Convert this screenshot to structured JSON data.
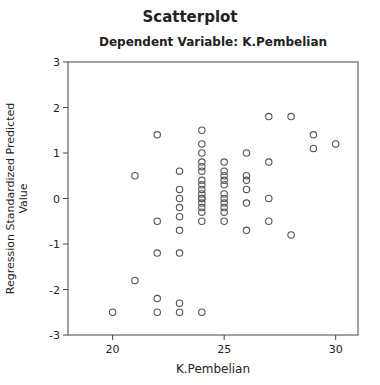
{
  "chart_data": {
    "type": "scatter",
    "title": "Scatterplot",
    "subtitle": "Dependent Variable: K.Pembelian",
    "xlabel": "K.Pembelian",
    "ylabel": "Regression Standardized Predicted\nValue",
    "xlim": [
      18,
      31
    ],
    "ylim": [
      -3,
      3
    ],
    "xticks": [
      20,
      25,
      30
    ],
    "yticks": [
      -3,
      -2,
      -1,
      0,
      1,
      2,
      3
    ],
    "grid": false,
    "color": "#555555",
    "marker": "open-circle",
    "x": [
      20,
      21,
      21,
      22,
      22,
      22,
      22,
      22,
      23,
      23,
      23,
      23,
      23,
      23,
      23,
      23,
      23,
      24,
      24,
      24,
      24,
      24,
      24,
      24,
      24,
      24,
      24,
      24,
      24,
      24,
      24,
      24,
      24,
      24,
      25,
      25,
      25,
      25,
      25,
      25,
      25,
      25,
      25,
      25,
      25,
      26,
      26,
      26,
      26,
      26,
      26,
      27,
      27,
      27,
      27,
      28,
      28,
      29,
      29,
      30
    ],
    "values": [
      -2.5,
      0.5,
      -1.8,
      -2.2,
      -2.5,
      -1.2,
      -0.5,
      1.4,
      -2.5,
      -2.3,
      -1.2,
      -0.7,
      -0.4,
      -0.2,
      0.0,
      0.2,
      0.6,
      -2.5,
      -0.5,
      -0.3,
      -0.2,
      -0.1,
      0.0,
      0.0,
      0.1,
      0.2,
      0.3,
      0.4,
      0.6,
      0.7,
      0.8,
      1.0,
      1.2,
      1.5,
      -0.5,
      -0.3,
      -0.2,
      -0.1,
      0.0,
      0.1,
      0.3,
      0.4,
      0.5,
      0.6,
      0.8,
      -0.7,
      -0.1,
      0.2,
      0.4,
      0.5,
      1.0,
      -0.5,
      0.0,
      0.8,
      1.8,
      -0.8,
      1.8,
      1.4,
      1.1,
      1.2
    ]
  }
}
